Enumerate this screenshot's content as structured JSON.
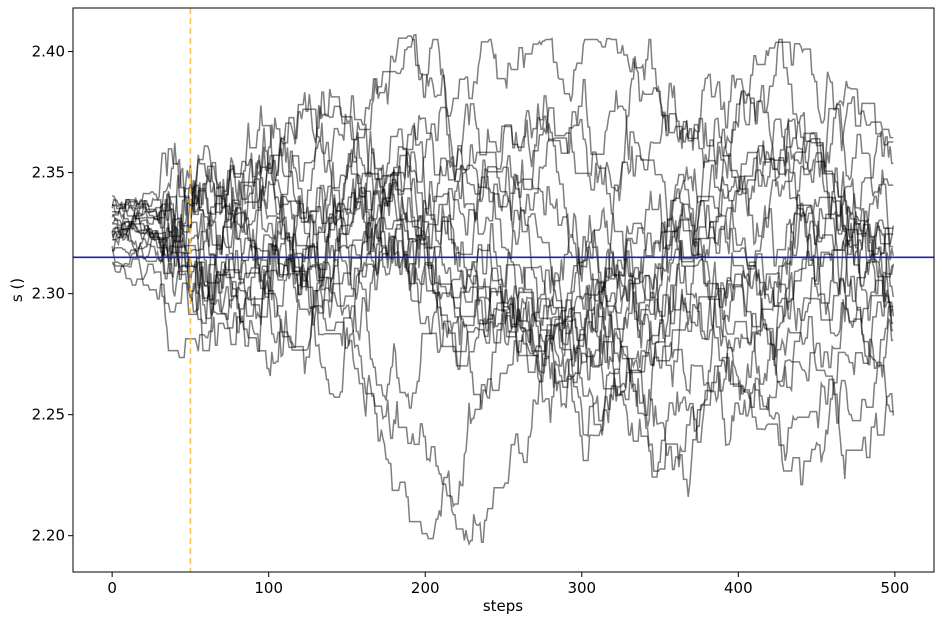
{
  "chart_data": {
    "type": "line",
    "title": "",
    "xlabel": "steps",
    "ylabel": "s ()",
    "xlim": [
      -25,
      525
    ],
    "ylim": [
      2.185,
      2.418
    ],
    "xticks": [
      0,
      100,
      200,
      300,
      400,
      500
    ],
    "xtick_labels": [
      "0",
      "100",
      "200",
      "300",
      "400",
      "500"
    ],
    "yticks": [
      2.2,
      2.25,
      2.3,
      2.35,
      2.4
    ],
    "ytick_labels": [
      "2.20",
      "2.25",
      "2.30",
      "2.35",
      "2.40"
    ],
    "grid": false,
    "legend": "none",
    "steps": 500,
    "walker_count": 20,
    "walker_color": "#000000",
    "walker_opacity": 0.5,
    "walker_start_range": [
      2.312,
      2.342
    ],
    "walker_value_range": [
      2.196,
      2.407
    ],
    "walker_center": 2.315,
    "reference_lines": [
      {
        "orientation": "horizontal",
        "value": 2.315,
        "color": "#1f1fb4",
        "style": "solid"
      },
      {
        "orientation": "vertical",
        "value": 50,
        "color": "#ffc04d",
        "style": "dashed"
      }
    ]
  }
}
